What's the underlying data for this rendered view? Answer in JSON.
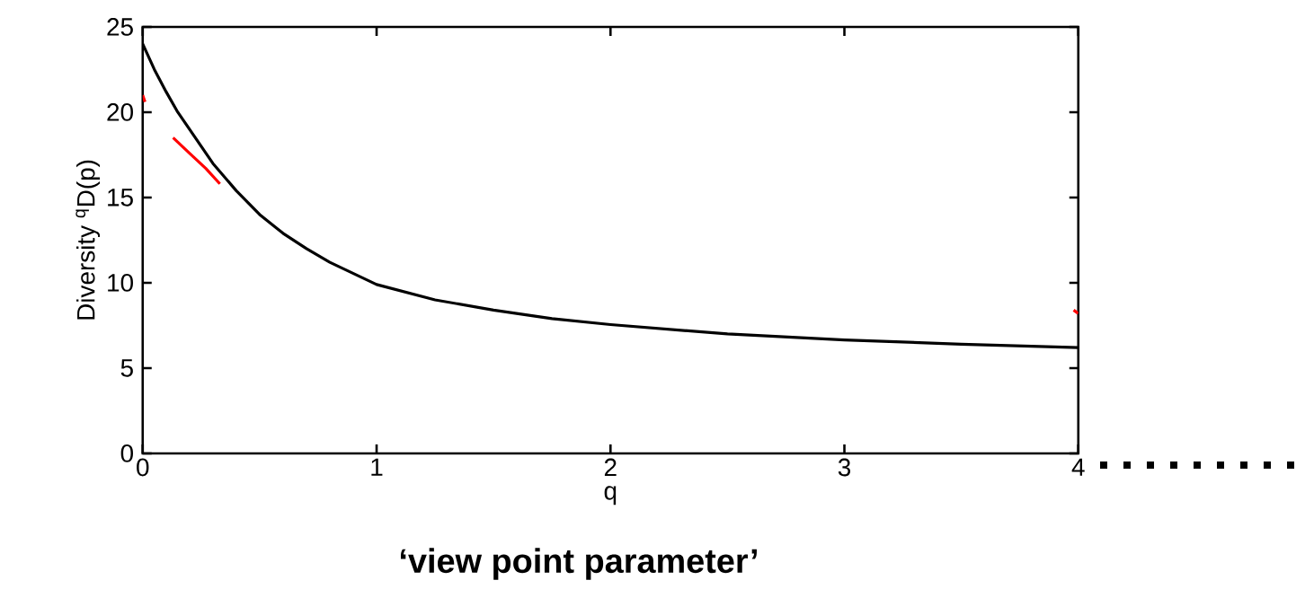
{
  "chart_data": {
    "type": "line",
    "xlabel": "q",
    "ylabel": "Diversity $^{q}$D(p)",
    "annotations": [
      "‘view point parameter’"
    ],
    "series": [
      {
        "color": "#000000",
        "x": [
          0,
          0.05,
          0.1,
          0.15,
          0.2,
          0.3,
          0.4,
          0.5,
          0.6,
          0.7,
          0.8,
          1.0,
          1.25,
          1.5,
          1.75,
          2.0,
          2.5,
          3.0,
          3.5,
          4.0
        ],
        "values": [
          24,
          22.5,
          21.2,
          20.0,
          19.0,
          17.0,
          15.4,
          14.0,
          12.9,
          12.0,
          11.2,
          9.9,
          9.0,
          8.4,
          7.9,
          7.55,
          7.0,
          6.65,
          6.4,
          6.2
        ]
      },
      {
        "color": "#ff0000",
        "x": [
          0,
          0.01,
          0.05,
          0.13,
          0.2,
          0.27,
          0.33,
          3.9,
          3.98,
          4.0
        ],
        "values": [
          21,
          20.6,
          null,
          18.5,
          17.6,
          16.7,
          15.8,
          null,
          8.4,
          8.2
        ]
      }
    ],
    "xlim": [
      0,
      4
    ],
    "ylim": [
      0,
      25
    ],
    "xticks": [
      0,
      1,
      2,
      3,
      4
    ],
    "yticks": [
      0,
      5,
      10,
      15,
      20,
      25
    ],
    "grid": false,
    "marker": "none",
    "line_style": "solid"
  }
}
